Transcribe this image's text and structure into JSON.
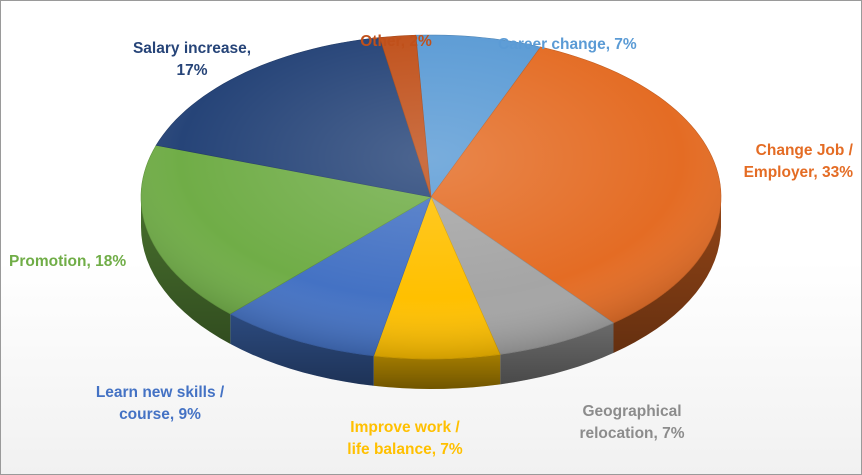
{
  "chart_data": {
    "type": "pie",
    "style": "3d",
    "slices": [
      {
        "label": "Career change, 7%",
        "category": "Career change",
        "value": 7,
        "color": "#5b9bd5",
        "label_color": "#5b9bd5"
      },
      {
        "label": "Change Job / Employer, 33%",
        "category": "Change Job / Employer",
        "value": 33,
        "color": "#e46c24",
        "label_color": "#e46c24"
      },
      {
        "label": "Geographical relocation, 7%",
        "category": "Geographical relocation",
        "value": 7,
        "color": "#a5a5a5",
        "label_color": "#8c8c8c"
      },
      {
        "label": "Improve work / life balance, 7%",
        "category": "Improve work / life balance",
        "value": 7,
        "color": "#ffc000",
        "label_color": "#ffc000"
      },
      {
        "label": "Learn new skills / course, 9%",
        "category": "Learn new skills / course",
        "value": 9,
        "color": "#4472c4",
        "label_color": "#4472c4"
      },
      {
        "label": "Promotion, 18%",
        "category": "Promotion",
        "value": 18,
        "color": "#70ad47",
        "label_color": "#70ad47"
      },
      {
        "label": "Salary increase, 17%",
        "category": "Salary increase",
        "value": 17,
        "color": "#264478",
        "label_color": "#264478"
      },
      {
        "label": "Other, 2%",
        "category": "Other",
        "value": 2,
        "color": "#c0501a",
        "label_color": "#c0501a"
      }
    ],
    "legend": "none",
    "data_labels": "outside"
  }
}
